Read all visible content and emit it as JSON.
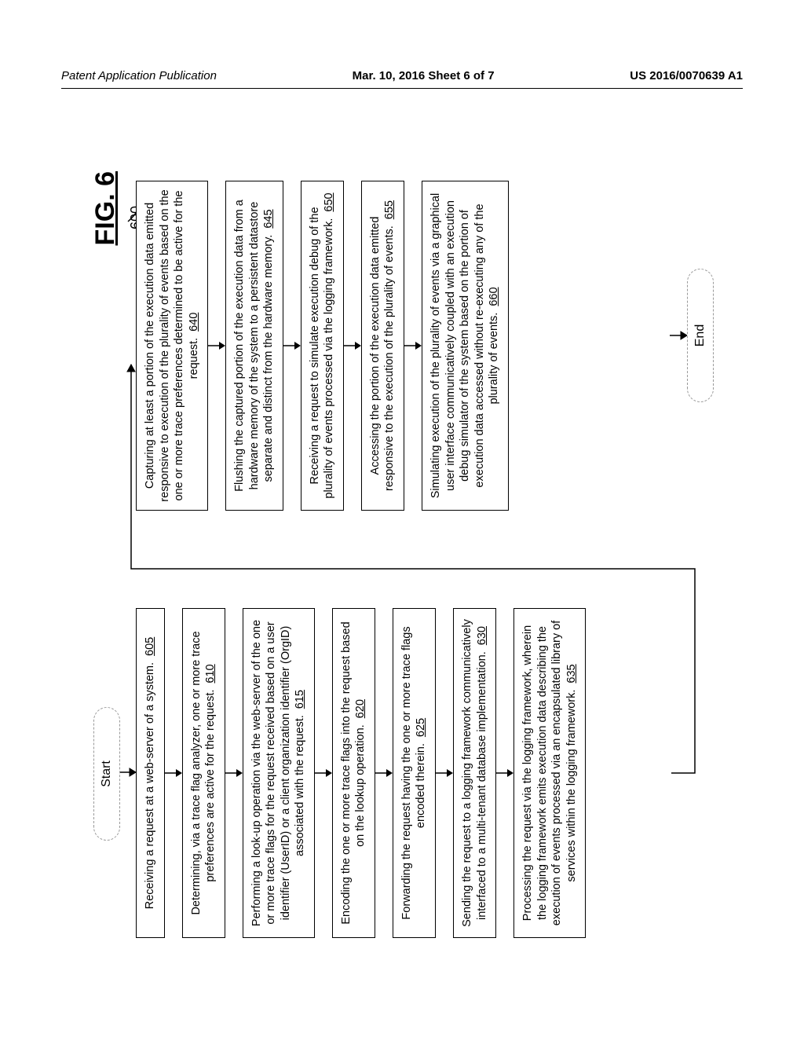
{
  "header": {
    "left": "Patent Application Publication",
    "center": "Mar. 10, 2016  Sheet 6 of 7",
    "right": "US 2016/0070639 A1"
  },
  "figure": {
    "label": "FIG. 6",
    "number": "600",
    "start": "Start",
    "end": "End",
    "left_steps": [
      {
        "text": "Receiving a request at a web-server of a system.",
        "ref": "605"
      },
      {
        "text": "Determining, via a trace flag analyzer, one or more trace preferences are active for the request.",
        "ref": "610"
      },
      {
        "text": "Performing a look-up operation via the web-server of the one or more trace flags for the request received based on a user identifier (UserID) or a client organization identifier (OrgID) associated with the request.",
        "ref": "615"
      },
      {
        "text": "Encoding the one or more trace flags into the request based on the lookup operation.",
        "ref": "620"
      },
      {
        "text": "Forwarding the request having the one or more trace flags encoded therein.",
        "ref": "625"
      },
      {
        "text": "Sending the request to a logging framework communicatively interfaced to a multi-tenant database implementation.",
        "ref": "630"
      },
      {
        "text": "Processing the request via the logging framework, wherein the logging framework emits execution data describing the execution of events processed via an encapsulated library of services within the logging framework.",
        "ref": "635"
      }
    ],
    "right_steps": [
      {
        "text": "Capturing at least a portion of the execution data emitted responsive to execution of the plurality of events based on the one or more trace preferences determined to be active for the request.",
        "ref": "640"
      },
      {
        "text": "Flushing the captured portion of the execution data from a hardware memory of the system to a persistent datastore separate and distinct from the hardware memory.",
        "ref": "645"
      },
      {
        "text": "Receiving a request to simulate execution debug of the plurality of events processed via the logging framework.",
        "ref": "650"
      },
      {
        "text": "Accessing the portion of the execution data emitted responsive to the execution of the plurality of events.",
        "ref": "655"
      },
      {
        "text": "Simulating execution of the plurality of events via a graphical user interface communicatively coupled with an execution debug simulator of the system based on the portion of execution data accessed without re-executing any of the plurality of events.",
        "ref": "660"
      }
    ]
  },
  "style": {
    "arrow_color": "#000000",
    "box_border": "#000000",
    "terminator_border": "#999999"
  }
}
